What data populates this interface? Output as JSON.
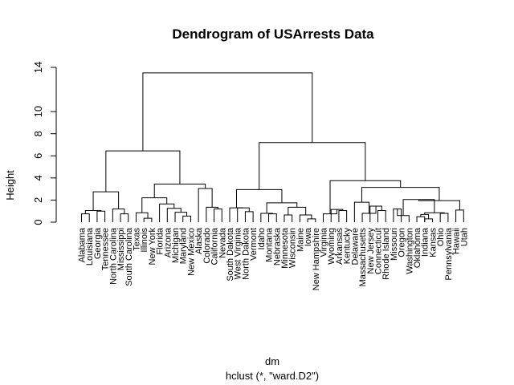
{
  "chart_data": {
    "type": "dendrogram",
    "title": "Dendrogram of USArrests Data",
    "xlabel": "dm",
    "sublabel": "hclust (*, \"ward.D2\")",
    "ylabel": "Height",
    "ylim": [
      0,
      14
    ],
    "y_ticks": [
      0,
      2,
      4,
      6,
      8,
      10,
      14
    ],
    "y_tick_labels": [
      "0",
      "2",
      "4",
      "6",
      "8",
      "10",
      "14"
    ],
    "leaves": [
      "Alabama",
      "Louisiana",
      "Georgia",
      "Tennessee",
      "North Carolina",
      "Mississippi",
      "South Carolina",
      "Texas",
      "Illinois",
      "New York",
      "Florida",
      "Arizona",
      "Michigan",
      "Maryland",
      "New Mexico",
      "Alaska",
      "Colorado",
      "California",
      "Nevada",
      "South Dakota",
      "West Virginia",
      "North Dakota",
      "Vermont",
      "Idaho",
      "Montana",
      "Nebraska",
      "Minnesota",
      "Wisconsin",
      "Maine",
      "Iowa",
      "New Hampshire",
      "Virginia",
      "Wyoming",
      "Arkansas",
      "Kentucky",
      "Delaware",
      "Massachusetts",
      "New Jersey",
      "Connecticut",
      "Rhode Island",
      "Missouri",
      "Oregon",
      "Washington",
      "Oklahoma",
      "Indiana",
      "Kansas",
      "Ohio",
      "Pennsylvania",
      "Hawaii",
      "Utah"
    ],
    "merges": [
      {
        "l": [
          "L",
          0
        ],
        "r": [
          "L",
          1
        ],
        "h": 0.75
      },
      {
        "l": [
          "L",
          2
        ],
        "r": [
          "L",
          3
        ],
        "h": 1.0
      },
      {
        "l": [
          "C",
          0
        ],
        "r": [
          "C",
          1
        ],
        "h": 1.05
      },
      {
        "l": [
          "L",
          5
        ],
        "r": [
          "L",
          6
        ],
        "h": 0.75
      },
      {
        "l": [
          "L",
          4
        ],
        "r": [
          "C",
          3
        ],
        "h": 1.2
      },
      {
        "l": [
          "C",
          2
        ],
        "r": [
          "C",
          4
        ],
        "h": 2.75
      },
      {
        "l": [
          "L",
          8
        ],
        "r": [
          "L",
          9
        ],
        "h": 0.35
      },
      {
        "l": [
          "L",
          7
        ],
        "r": [
          "C",
          6
        ],
        "h": 0.85
      },
      {
        "l": [
          "L",
          13
        ],
        "r": [
          "L",
          14
        ],
        "h": 0.55
      },
      {
        "l": [
          "L",
          12
        ],
        "r": [
          "C",
          8
        ],
        "h": 0.9
      },
      {
        "l": [
          "L",
          11
        ],
        "r": [
          "C",
          9
        ],
        "h": 1.25
      },
      {
        "l": [
          "L",
          10
        ],
        "r": [
          "C",
          10
        ],
        "h": 1.65
      },
      {
        "l": [
          "C",
          7
        ],
        "r": [
          "C",
          11
        ],
        "h": 2.2
      },
      {
        "l": [
          "L",
          17
        ],
        "r": [
          "L",
          18
        ],
        "h": 1.2
      },
      {
        "l": [
          "L",
          16
        ],
        "r": [
          "C",
          13
        ],
        "h": 1.35
      },
      {
        "l": [
          "L",
          15
        ],
        "r": [
          "C",
          14
        ],
        "h": 3.05
      },
      {
        "l": [
          "C",
          12
        ],
        "r": [
          "C",
          15
        ],
        "h": 3.45
      },
      {
        "l": [
          "C",
          5
        ],
        "r": [
          "C",
          16
        ],
        "h": 6.45
      },
      {
        "l": [
          "L",
          21
        ],
        "r": [
          "L",
          22
        ],
        "h": 0.95
      },
      {
        "l": [
          "L",
          20
        ],
        "r": [
          "C",
          18
        ],
        "h": 1.3
      },
      {
        "l": [
          "L",
          19
        ],
        "r": [
          "C",
          19
        ],
        "h": 1.3
      },
      {
        "l": [
          "L",
          24
        ],
        "r": [
          "L",
          25
        ],
        "h": 0.75
      },
      {
        "l": [
          "L",
          23
        ],
        "r": [
          "C",
          21
        ],
        "h": 0.8
      },
      {
        "l": [
          "L",
          29
        ],
        "r": [
          "L",
          30
        ],
        "h": 0.3
      },
      {
        "l": [
          "L",
          28
        ],
        "r": [
          "C",
          23
        ],
        "h": 0.65
      },
      {
        "l": [
          "L",
          26
        ],
        "r": [
          "L",
          27
        ],
        "h": 0.65
      },
      {
        "l": [
          "C",
          25
        ],
        "r": [
          "C",
          24
        ],
        "h": 1.35
      },
      {
        "l": [
          "C",
          22
        ],
        "r": [
          "C",
          26
        ],
        "h": 1.75
      },
      {
        "l": [
          "C",
          20
        ],
        "r": [
          "C",
          27
        ],
        "h": 2.95
      },
      {
        "l": [
          "L",
          33
        ],
        "r": [
          "L",
          34
        ],
        "h": 1.05
      },
      {
        "l": [
          "L",
          32
        ],
        "r": [
          "C",
          29
        ],
        "h": 1.15
      },
      {
        "l": [
          "L",
          31
        ],
        "r": [
          "C",
          30
        ],
        "h": 0.75
      },
      {
        "l": [
          "L",
          38
        ],
        "r": [
          "L",
          39
        ],
        "h": 1.05
      },
      {
        "l": [
          "L",
          37
        ],
        "r": [
          "C",
          32
        ],
        "h": 1.45
      },
      {
        "l": [
          "L",
          36
        ],
        "r": [
          "C",
          33
        ],
        "h": 0.8
      },
      {
        "l": [
          "L",
          35
        ],
        "r": [
          "C",
          34
        ],
        "h": 1.8
      },
      {
        "l": [
          "L",
          43
        ],
        "r": [
          "L",
          44
        ],
        "h": 0.5
      },
      {
        "l": [
          "L",
          44
        ],
        "r": [
          "L",
          45
        ],
        "h": 0.3
      },
      {
        "l": [
          "C",
          36
        ],
        "r": [
          "C",
          37
        ],
        "h": 0.7
      },
      {
        "l": [
          "L",
          46
        ],
        "r": [
          "L",
          47
        ],
        "h": 0.8
      },
      {
        "l": [
          "C",
          38
        ],
        "r": [
          "C",
          39
        ],
        "h": 0.85
      },
      {
        "l": [
          "L",
          40
        ],
        "r": [
          "L",
          41
        ],
        "h": 1.2
      },
      {
        "l": [
          "L",
          42
        ],
        "r": [
          "C",
          41
        ],
        "h": 0.6
      },
      {
        "l": [
          "C",
          42
        ],
        "r": [
          "C",
          40
        ],
        "h": 2.05
      },
      {
        "l": [
          "L",
          48
        ],
        "r": [
          "L",
          49
        ],
        "h": 1.1
      },
      {
        "l": [
          "C",
          43
        ],
        "r": [
          "C",
          44
        ],
        "h": 1.95
      },
      {
        "l": [
          "C",
          35
        ],
        "r": [
          "C",
          45
        ],
        "h": 3.15
      },
      {
        "l": [
          "C",
          31
        ],
        "r": [
          "C",
          46
        ],
        "h": 3.75
      },
      {
        "l": [
          "C",
          28
        ],
        "r": [
          "C",
          47
        ],
        "h": 7.2
      },
      {
        "l": [
          "C",
          17
        ],
        "r": [
          "C",
          48
        ],
        "h": 13.5
      }
    ]
  }
}
